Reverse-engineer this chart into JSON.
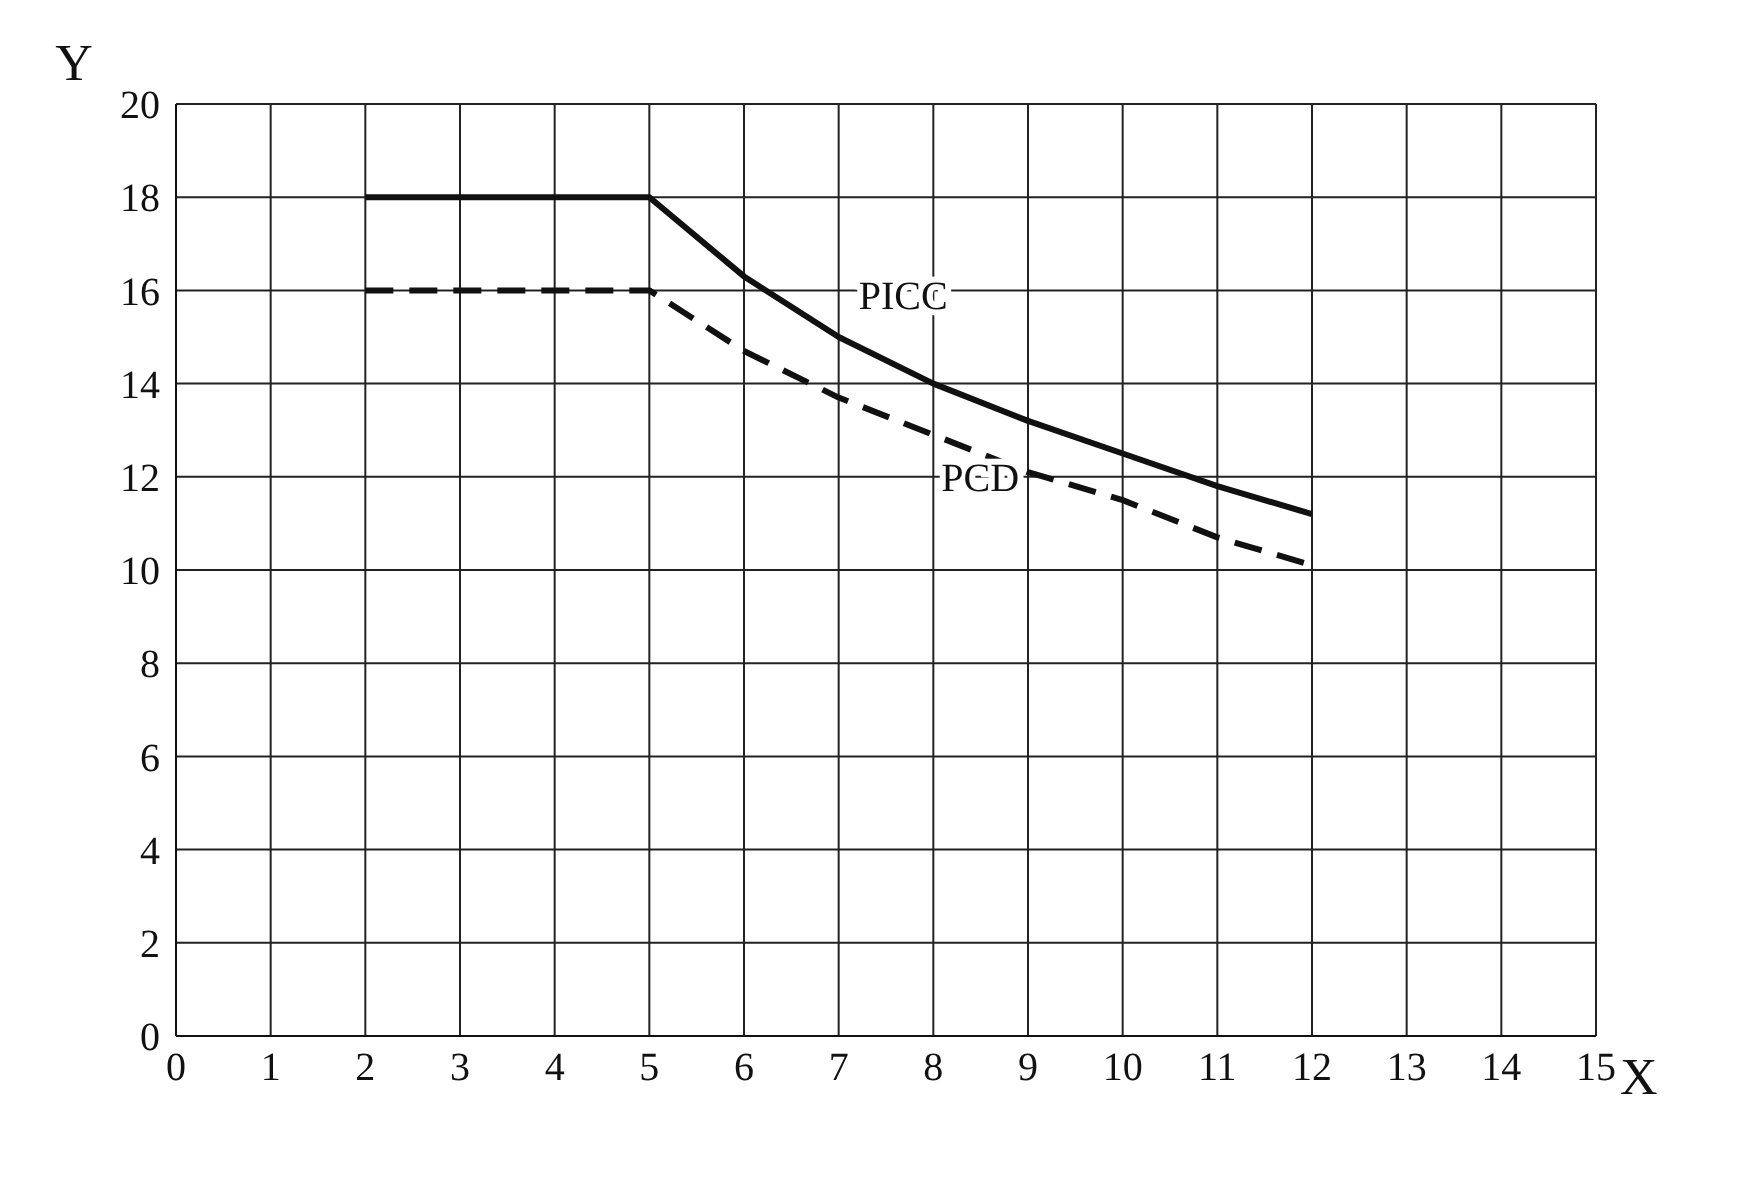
{
  "chart_data": {
    "type": "line",
    "xlabel": "X",
    "ylabel": "Y",
    "x": [
      2,
      5,
      6,
      7,
      8,
      9,
      10,
      11,
      12
    ],
    "series": [
      {
        "name": "PICC",
        "color": "#111111",
        "line_style": "solid",
        "values": [
          18,
          18,
          16.3,
          15,
          14,
          13.2,
          12.5,
          11.8,
          11.2
        ]
      },
      {
        "name": "PCD",
        "color": "#111111",
        "line_style": "dashed",
        "values": [
          16,
          16,
          14.7,
          13.7,
          12.9,
          12.1,
          11.5,
          10.7,
          10.1
        ]
      }
    ],
    "xlim": [
      0,
      15
    ],
    "xticks": [
      0,
      1,
      2,
      3,
      4,
      5,
      6,
      7,
      8,
      9,
      10,
      11,
      12,
      13,
      14,
      15
    ],
    "ylim": [
      0,
      20
    ],
    "yticks": [
      0,
      2,
      4,
      6,
      8,
      10,
      12,
      14,
      16,
      18,
      20
    ],
    "grid": true,
    "marker": "none",
    "legend": false
  }
}
